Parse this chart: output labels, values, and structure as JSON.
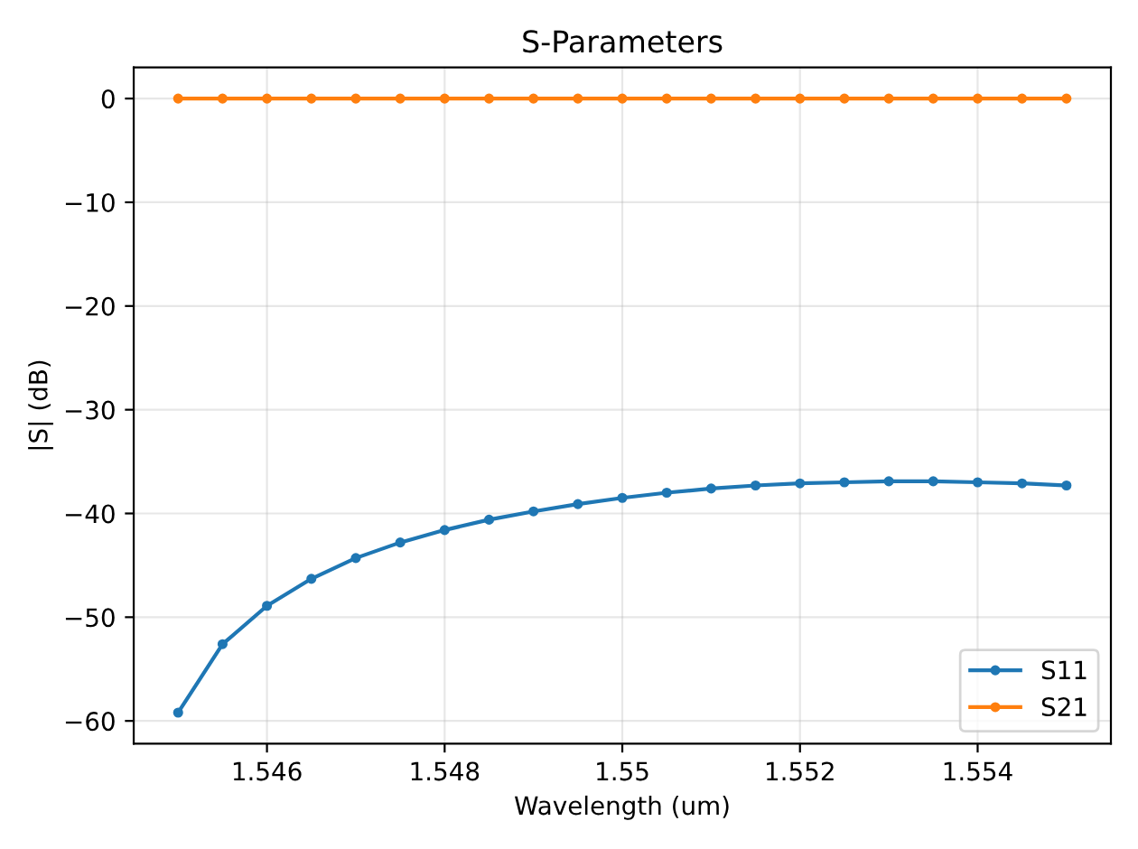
{
  "chart_data": {
    "type": "line",
    "title": "S-Parameters",
    "xlabel": "Wavelength (um)",
    "ylabel": "|S| (dB)",
    "x": [
      1.545,
      1.5455,
      1.546,
      1.5465,
      1.547,
      1.5475,
      1.548,
      1.5485,
      1.549,
      1.5495,
      1.55,
      1.5505,
      1.551,
      1.5515,
      1.552,
      1.5525,
      1.553,
      1.5535,
      1.554,
      1.5545,
      1.555
    ],
    "series": [
      {
        "name": "S11",
        "color": "#1f77b4",
        "values": [
          -59.2,
          -52.6,
          -48.9,
          -46.3,
          -44.3,
          -42.8,
          -41.6,
          -40.6,
          -39.8,
          -39.1,
          -38.5,
          -38.0,
          -37.6,
          -37.3,
          -37.1,
          -37.0,
          -36.9,
          -36.9,
          -37.0,
          -37.1,
          -37.3
        ]
      },
      {
        "name": "S21",
        "color": "#ff7f0e",
        "values": [
          0,
          0,
          0,
          0,
          0,
          0,
          0,
          0,
          0,
          0,
          0,
          0,
          0,
          0,
          0,
          0,
          0,
          0,
          0,
          0,
          0
        ]
      }
    ],
    "xlim": [
      1.5445,
      1.5555
    ],
    "xticks": [
      1.546,
      1.548,
      1.55,
      1.552,
      1.554
    ],
    "ylim": [
      -62.2,
      3.0
    ],
    "yticks": [
      -60,
      -50,
      -40,
      -30,
      -20,
      -10,
      0
    ],
    "grid": true,
    "legend": "lower right",
    "marker": "circle",
    "line_style": "solid"
  }
}
